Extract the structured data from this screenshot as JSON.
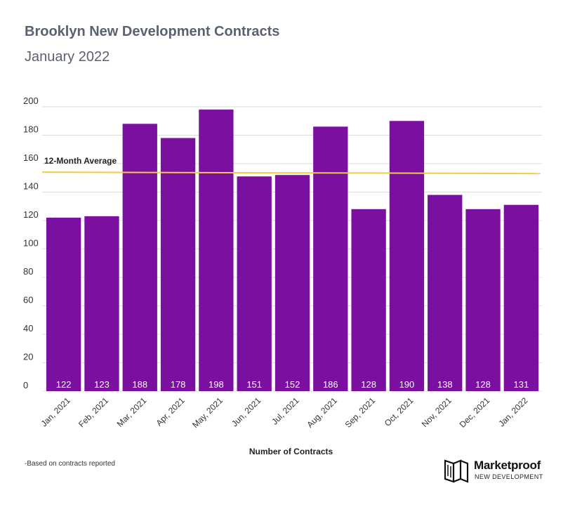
{
  "header": {
    "title": "Brooklyn New Development Contracts",
    "subtitle": "January 2022"
  },
  "chart_data": {
    "type": "bar",
    "title": "Brooklyn New Development Contracts",
    "subtitle": "January 2022",
    "xlabel": "Number of Contracts",
    "ylabel": "",
    "categories": [
      "Jan, 2021",
      "Feb, 2021",
      "Mar, 2021",
      "Apr, 2021",
      "May, 2021",
      "Jun, 2021",
      "Jul, 2021",
      "Aug, 2021",
      "Sep, 2021",
      "Oct, 2021",
      "Nov, 2021",
      "Dec, 2021",
      "Jan, 2022"
    ],
    "values": [
      122,
      123,
      188,
      178,
      198,
      151,
      152,
      186,
      128,
      190,
      138,
      128,
      131
    ],
    "ylim": [
      0,
      200
    ],
    "yticks": [
      0,
      20,
      40,
      60,
      80,
      100,
      120,
      140,
      160,
      180,
      200
    ],
    "grid": true,
    "average_line": {
      "label": "12-Month Average",
      "start": 154,
      "end": 153
    },
    "colors": {
      "bar": "#7a0fa0",
      "average": "#f7c948",
      "grid": "#dddddd",
      "value_label": "#ffffff"
    }
  },
  "footnote": "-Based on contracts reported",
  "brand": {
    "name": "Marketproof",
    "tagline": "NEW DEVELOPMENT"
  }
}
